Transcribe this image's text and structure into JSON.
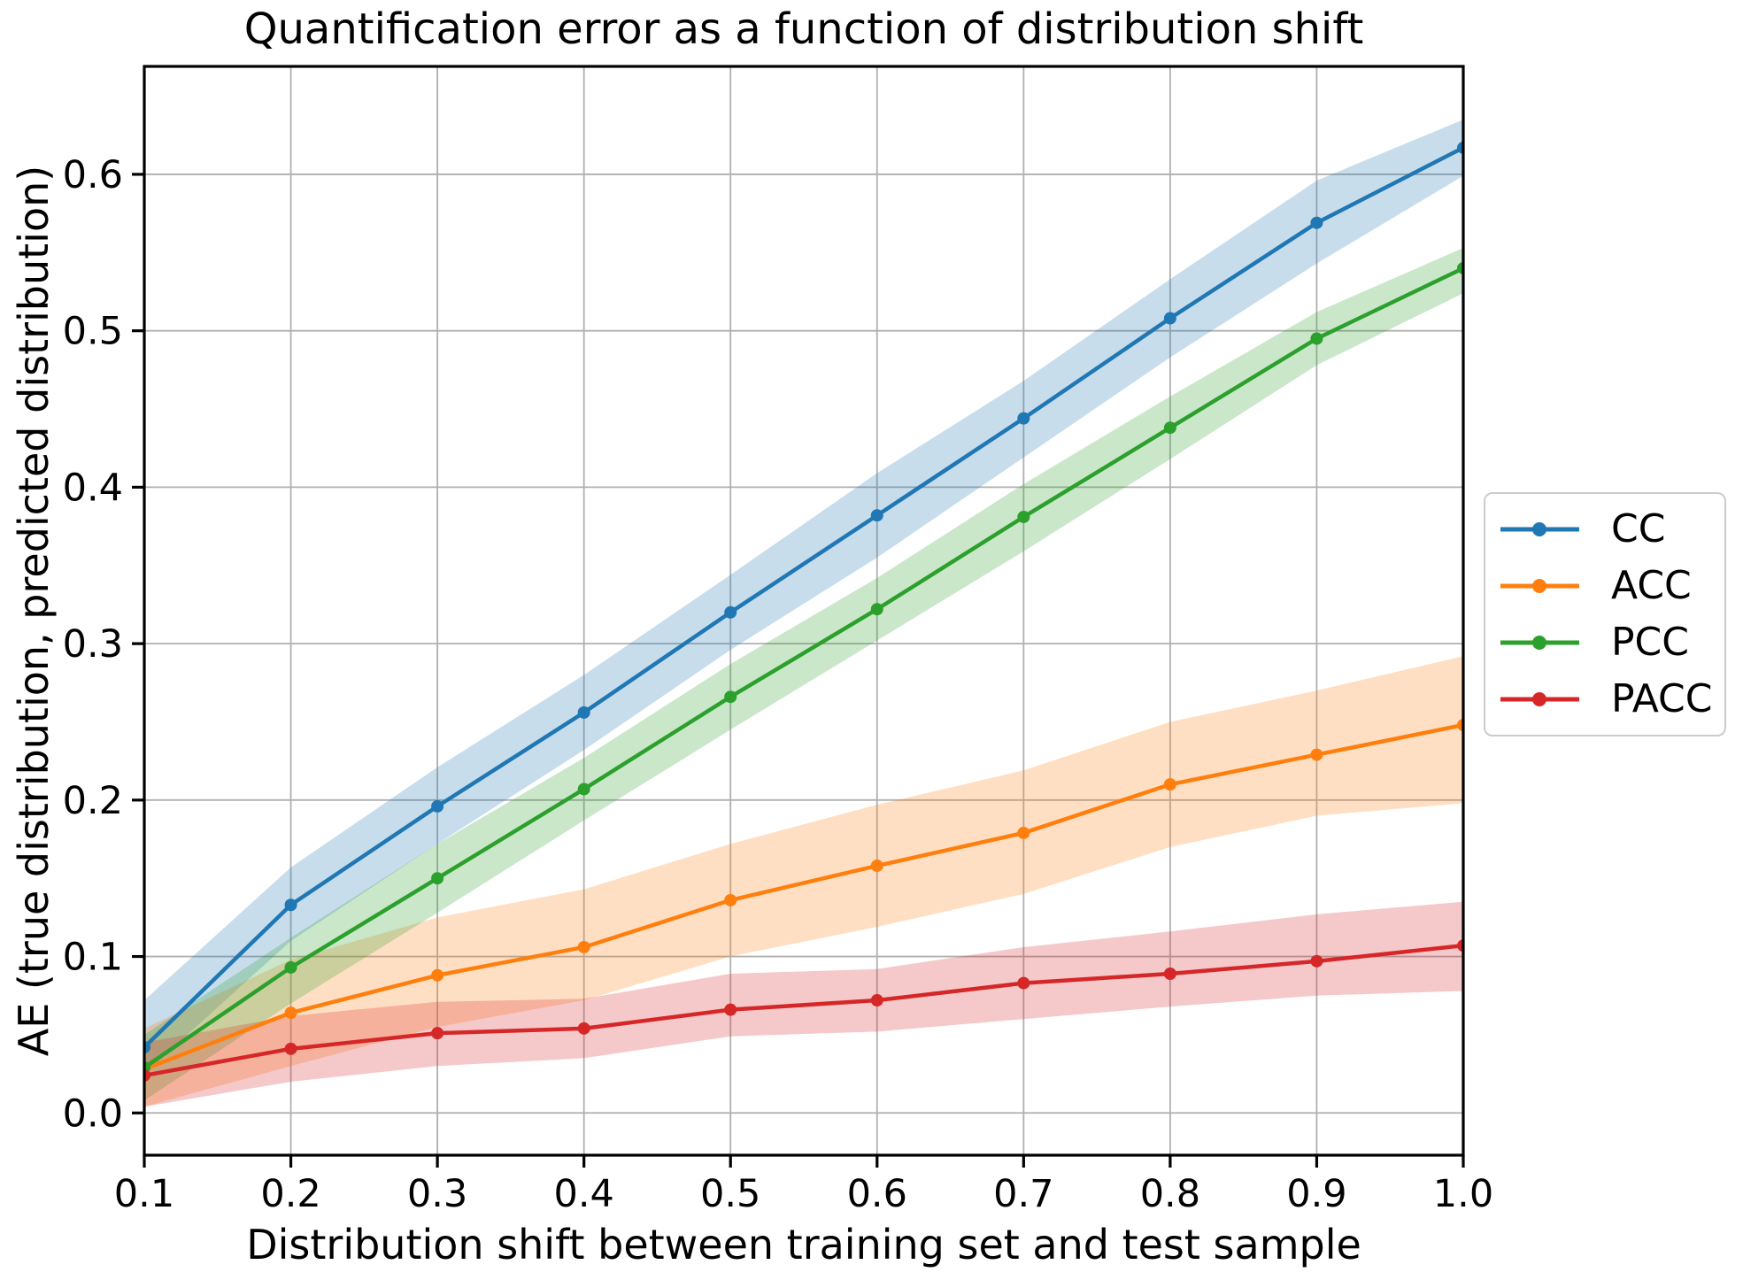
{
  "figure": {
    "background_color": "#ffffff",
    "text_color": "#000000"
  },
  "chart_data": {
    "type": "line",
    "title": "Quantification error as a function of distribution shift",
    "xlabel": "Distribution shift between training set and test sample",
    "ylabel": "AE (true distribution, predicted distribution)",
    "x": [
      0.1,
      0.2,
      0.3,
      0.4,
      0.5,
      0.6,
      0.7,
      0.8,
      0.9,
      1.0
    ],
    "xlim": [
      0.1,
      1.0
    ],
    "ylim": [
      -0.027,
      0.669
    ],
    "xtick_labels": [
      "0.1",
      "0.2",
      "0.3",
      "0.4",
      "0.5",
      "0.6",
      "0.7",
      "0.8",
      "0.9",
      "1.0"
    ],
    "ytick_labels": [
      "0.0",
      "0.1",
      "0.2",
      "0.3",
      "0.4",
      "0.5",
      "0.6"
    ],
    "grid": true,
    "grid_color": "#b0b0b0",
    "band_opacity": 0.25,
    "legend_position": "outside-center-right",
    "series": [
      {
        "name": "CC",
        "color": "#1f77b4",
        "values": [
          0.042,
          0.133,
          0.196,
          0.256,
          0.32,
          0.382,
          0.444,
          0.508,
          0.569,
          0.617
        ],
        "band_lower": [
          0.025,
          0.11,
          0.172,
          0.232,
          0.296,
          0.355,
          0.419,
          0.483,
          0.543,
          0.599
        ],
        "band_upper": [
          0.072,
          0.157,
          0.221,
          0.28,
          0.344,
          0.409,
          0.468,
          0.533,
          0.596,
          0.635
        ]
      },
      {
        "name": "ACC",
        "color": "#ff7f0e",
        "values": [
          0.028,
          0.064,
          0.088,
          0.106,
          0.136,
          0.158,
          0.179,
          0.21,
          0.229,
          0.248
        ],
        "band_lower": [
          0.004,
          0.03,
          0.055,
          0.072,
          0.1,
          0.119,
          0.14,
          0.17,
          0.19,
          0.198
        ],
        "band_upper": [
          0.054,
          0.098,
          0.125,
          0.143,
          0.172,
          0.197,
          0.219,
          0.25,
          0.27,
          0.292
        ]
      },
      {
        "name": "PCC",
        "color": "#2ca02c",
        "values": [
          0.029,
          0.093,
          0.15,
          0.207,
          0.266,
          0.322,
          0.381,
          0.438,
          0.495,
          0.54
        ],
        "band_lower": [
          0.008,
          0.07,
          0.128,
          0.187,
          0.245,
          0.302,
          0.359,
          0.418,
          0.478,
          0.524
        ],
        "band_upper": [
          0.05,
          0.112,
          0.172,
          0.227,
          0.287,
          0.342,
          0.402,
          0.458,
          0.512,
          0.553
        ]
      },
      {
        "name": "PACC",
        "color": "#d62728",
        "values": [
          0.024,
          0.041,
          0.051,
          0.054,
          0.066,
          0.072,
          0.083,
          0.089,
          0.097,
          0.107
        ],
        "band_lower": [
          0.004,
          0.02,
          0.03,
          0.035,
          0.049,
          0.052,
          0.06,
          0.068,
          0.075,
          0.078
        ],
        "band_upper": [
          0.045,
          0.062,
          0.071,
          0.073,
          0.089,
          0.092,
          0.106,
          0.116,
          0.127,
          0.135
        ]
      }
    ]
  }
}
